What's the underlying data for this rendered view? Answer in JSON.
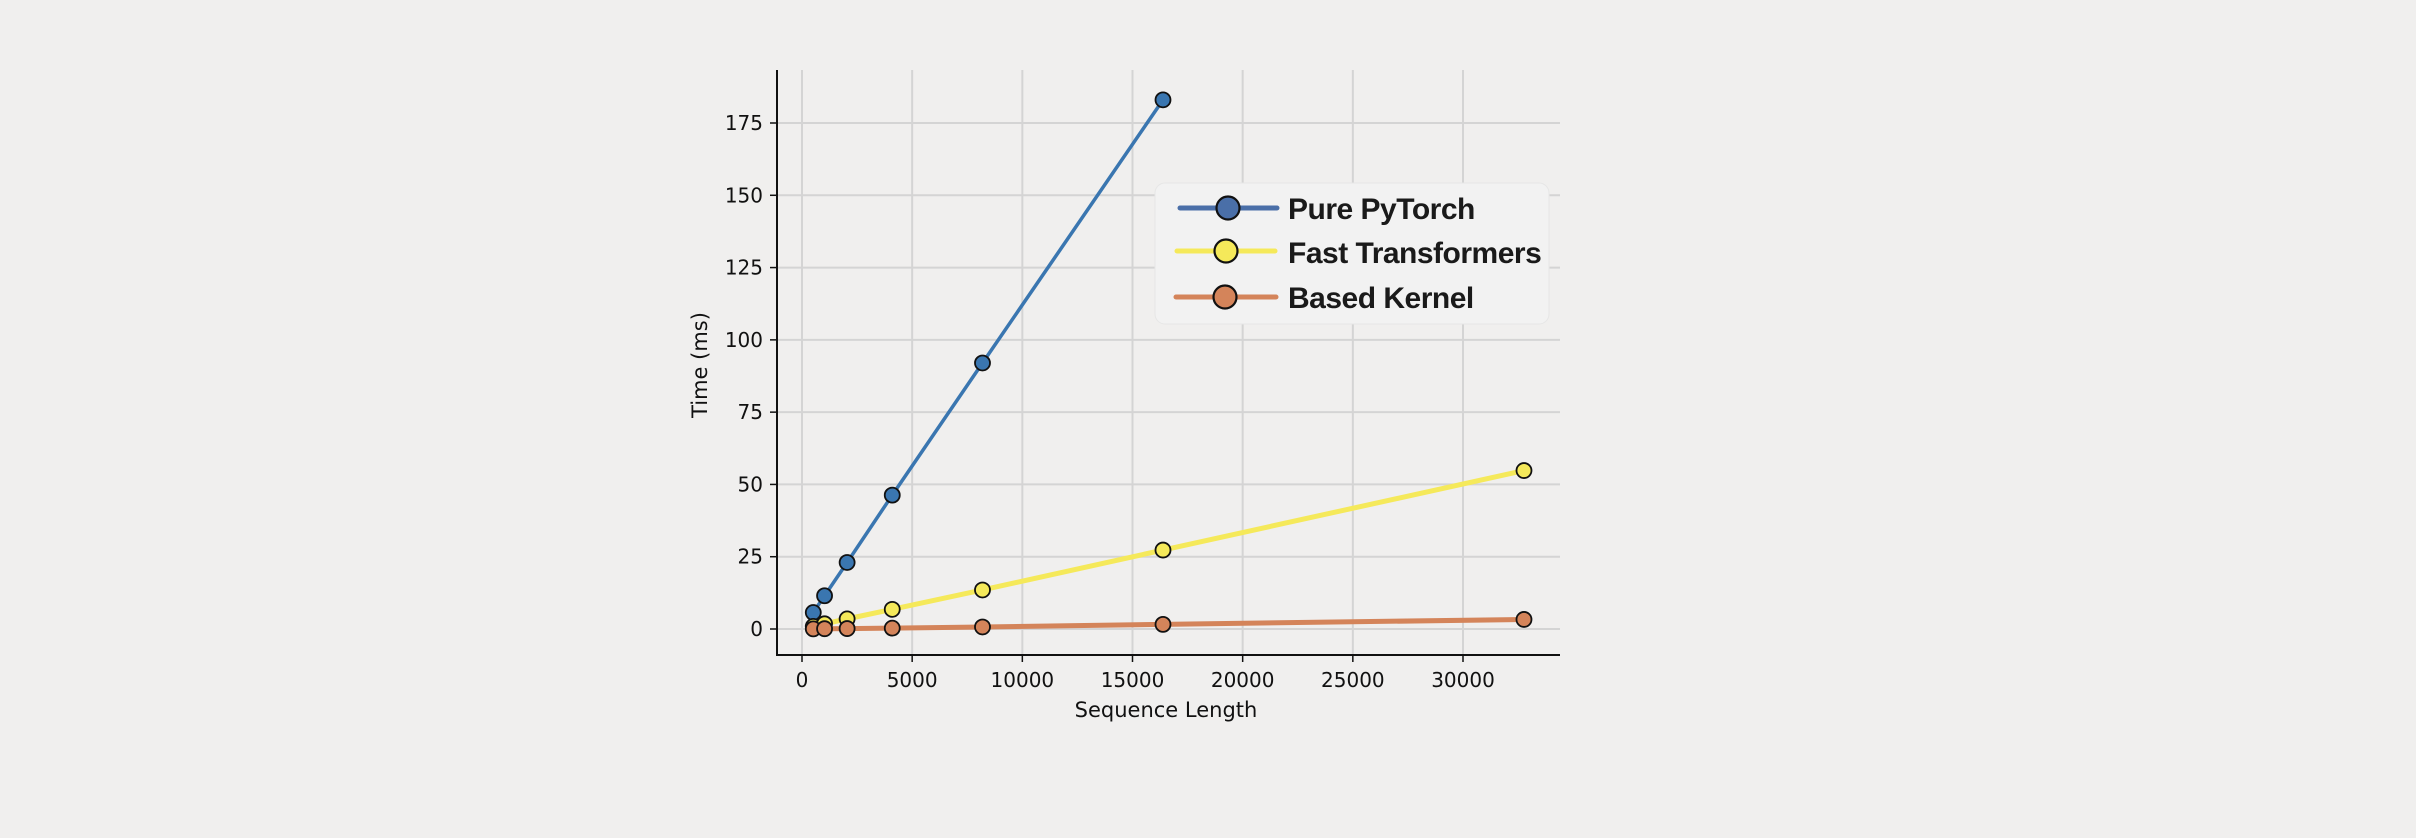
{
  "chart_data": {
    "type": "line",
    "title": "",
    "xlabel": "Sequence Length",
    "ylabel": "Time (ms)",
    "xlim": [
      -1000,
      34000
    ],
    "ylim": [
      -7,
      192
    ],
    "x_ticks": [
      0,
      5000,
      10000,
      15000,
      20000,
      25000,
      30000
    ],
    "x_tick_labels": [
      "0",
      "5000",
      "10000",
      "15000",
      "20000",
      "25000",
      "30000"
    ],
    "y_ticks": [
      0,
      25,
      50,
      75,
      100,
      125,
      150,
      175
    ],
    "y_tick_labels": [
      "0",
      "25",
      "50",
      "75",
      "100",
      "125",
      "150",
      "175"
    ],
    "grid": true,
    "legend_position": "upper right",
    "series": [
      {
        "name": "Pure PyTorch",
        "color": "#3a76b0",
        "legend_color": "#4a6fa8",
        "x": [
          512,
          1024,
          2048,
          4096,
          8192,
          16384
        ],
        "values": [
          5.7,
          11.5,
          23.0,
          46.3,
          92.0,
          183.0
        ]
      },
      {
        "name": "Fast Transformers",
        "color": "#f5e95a",
        "legend_color": "#f5e95a",
        "x": [
          512,
          1024,
          2048,
          4096,
          8192,
          16384,
          32768
        ],
        "values": [
          0.9,
          1.8,
          3.5,
          6.8,
          13.5,
          27.3,
          54.8
        ]
      },
      {
        "name": "Based Kernel",
        "color": "#d4845a",
        "legend_color": "#d4845a",
        "x": [
          512,
          1024,
          2048,
          4096,
          8192,
          16384,
          32768
        ],
        "values": [
          0.05,
          0.1,
          0.15,
          0.3,
          0.7,
          1.6,
          3.3
        ]
      }
    ]
  },
  "legend": {
    "items": [
      "Pure PyTorch",
      "Fast Transformers",
      "Based Kernel"
    ]
  }
}
